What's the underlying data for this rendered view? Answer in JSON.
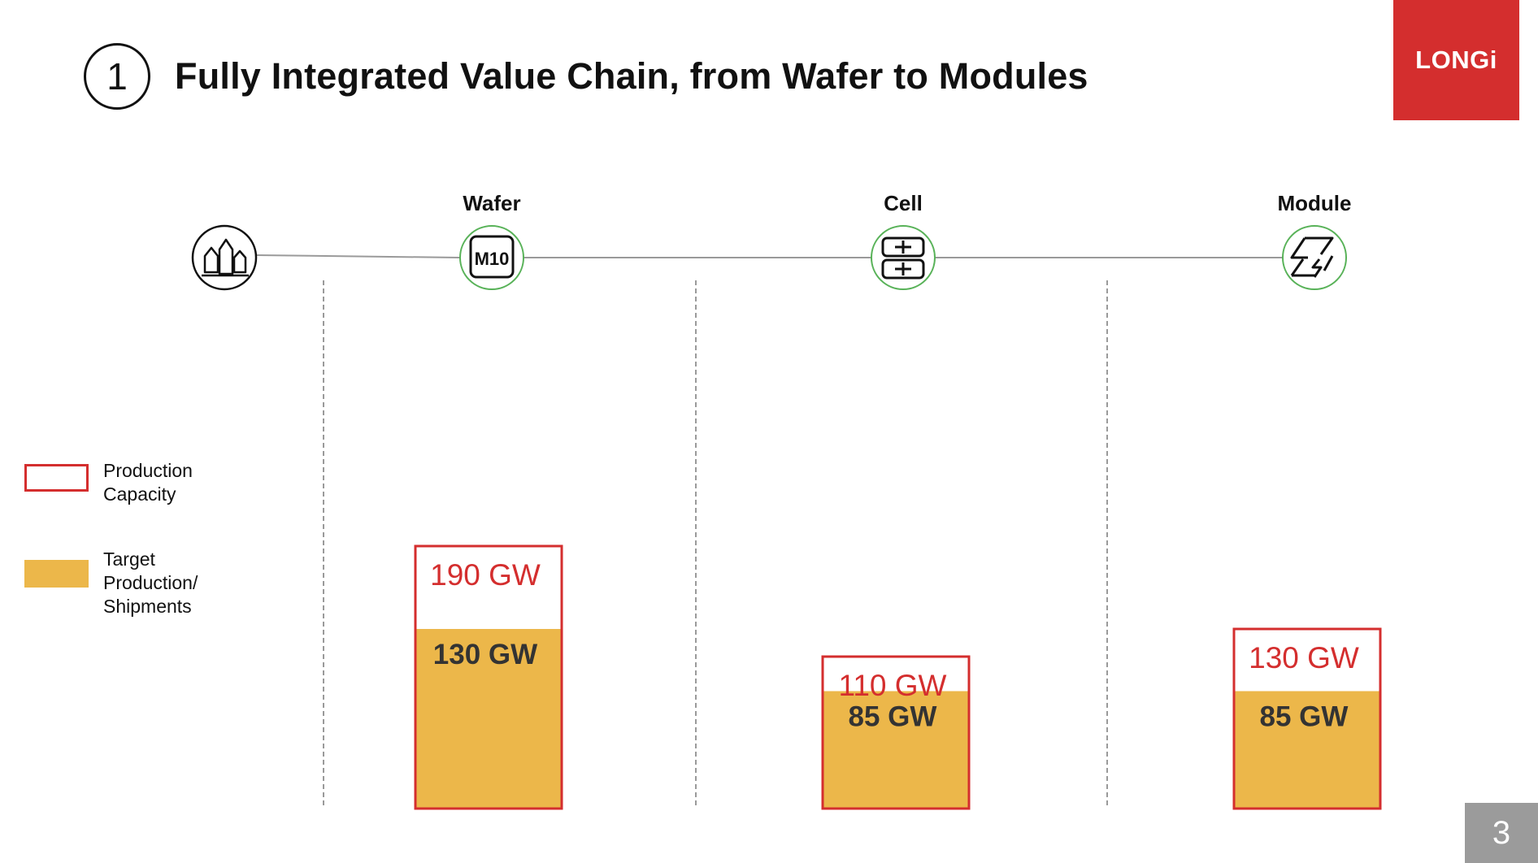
{
  "slide": {
    "number_badge": "1",
    "title": "Fully Integrated Value Chain, from Wafer to Modules",
    "logo_text": "LONGi",
    "page_number": "3",
    "colors": {
      "brand_red": "#d42e2e",
      "target_gold": "#ecb74a",
      "page_badge_gray": "#9b9b9b"
    }
  },
  "value_chain": {
    "stages": [
      {
        "label": "",
        "icon": "crystal-icon"
      },
      {
        "label": "Wafer",
        "icon": "wafer-m10-icon",
        "icon_text": "M10"
      },
      {
        "label": "Cell",
        "icon": "cell-icon"
      },
      {
        "label": "Module",
        "icon": "module-icon"
      }
    ]
  },
  "legend": {
    "capacity": "Production\nCapacity",
    "target": "Target\nProduction/\nShipments"
  },
  "chart_data": {
    "type": "bar",
    "categories": [
      "Wafer",
      "Cell",
      "Module"
    ],
    "series": [
      {
        "name": "Production Capacity",
        "values": [
          190,
          110,
          130
        ],
        "labels": [
          "190 GW",
          "110 GW",
          "130 GW"
        ]
      },
      {
        "name": "Target Production/ Shipments",
        "values": [
          130,
          85,
          85
        ],
        "labels": [
          "130 GW",
          "85 GW",
          "85 GW"
        ]
      }
    ],
    "units": "GW",
    "overlay": true,
    "ylim": [
      0,
      190
    ],
    "grid": false,
    "legend_position": "left"
  }
}
